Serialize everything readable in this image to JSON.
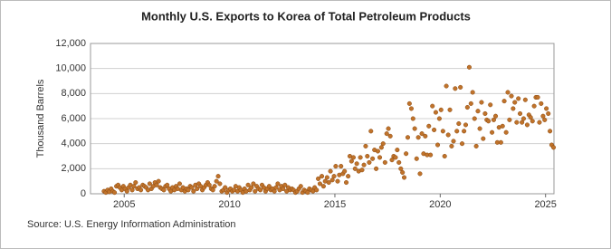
{
  "chart_data": {
    "type": "scatter",
    "title": "Monthly U.S. Exports to Korea of Total Petroleum Products",
    "y_label": "Thousand Barrels",
    "source": "Source: U.S. Energy Information Administration",
    "color": "#c0732b",
    "grid": true,
    "xlim": [
      2003.4,
      2025.4
    ],
    "xticks": [
      2005,
      2010,
      2015,
      2020,
      2025
    ],
    "ylim": [
      0,
      12000
    ],
    "yticks": [
      0,
      {
        "value": 2000,
        "label": "2,000"
      },
      {
        "value": 4000,
        "label": "4,000"
      },
      {
        "value": 6000,
        "label": "6,000"
      },
      {
        "value": 8000,
        "label": "8,000"
      },
      {
        "value": 10000,
        "label": "10,000"
      },
      {
        "value": 12000,
        "label": "12,000"
      }
    ],
    "x": [
      2004.04,
      2004.13,
      2004.21,
      2004.29,
      2004.38,
      2004.46,
      2004.54,
      2004.63,
      2004.71,
      2004.79,
      2004.88,
      2004.96,
      2005.04,
      2005.13,
      2005.21,
      2005.29,
      2005.38,
      2005.46,
      2005.54,
      2005.63,
      2005.71,
      2005.79,
      2005.88,
      2005.96,
      2006.04,
      2006.13,
      2006.21,
      2006.29,
      2006.38,
      2006.46,
      2006.54,
      2006.63,
      2006.71,
      2006.79,
      2006.88,
      2006.96,
      2007.04,
      2007.13,
      2007.21,
      2007.29,
      2007.38,
      2007.46,
      2007.54,
      2007.63,
      2007.71,
      2007.79,
      2007.88,
      2007.96,
      2008.04,
      2008.13,
      2008.21,
      2008.29,
      2008.38,
      2008.46,
      2008.54,
      2008.63,
      2008.71,
      2008.79,
      2008.88,
      2008.96,
      2009.04,
      2009.13,
      2009.21,
      2009.29,
      2009.38,
      2009.46,
      2009.54,
      2009.63,
      2009.71,
      2009.79,
      2009.88,
      2009.96,
      2010.04,
      2010.13,
      2010.21,
      2010.29,
      2010.38,
      2010.46,
      2010.54,
      2010.63,
      2010.71,
      2010.79,
      2010.88,
      2010.96,
      2011.04,
      2011.13,
      2011.21,
      2011.29,
      2011.38,
      2011.46,
      2011.54,
      2011.63,
      2011.71,
      2011.79,
      2011.88,
      2011.96,
      2012.04,
      2012.13,
      2012.21,
      2012.29,
      2012.38,
      2012.46,
      2012.54,
      2012.63,
      2012.71,
      2012.79,
      2012.88,
      2012.96,
      2013.04,
      2013.13,
      2013.21,
      2013.29,
      2013.38,
      2013.46,
      2013.54,
      2013.63,
      2013.71,
      2013.79,
      2013.88,
      2013.96,
      2014.04,
      2014.13,
      2014.21,
      2014.29,
      2014.38,
      2014.46,
      2014.54,
      2014.63,
      2014.71,
      2014.79,
      2014.88,
      2014.96,
      2015.04,
      2015.13,
      2015.21,
      2015.29,
      2015.38,
      2015.46,
      2015.54,
      2015.63,
      2015.71,
      2015.79,
      2015.88,
      2015.96,
      2016.04,
      2016.13,
      2016.21,
      2016.29,
      2016.38,
      2016.46,
      2016.54,
      2016.63,
      2016.71,
      2016.79,
      2016.88,
      2016.96,
      2017.04,
      2017.13,
      2017.21,
      2017.29,
      2017.38,
      2017.46,
      2017.54,
      2017.63,
      2017.71,
      2017.79,
      2017.88,
      2017.96,
      2018.04,
      2018.13,
      2018.21,
      2018.29,
      2018.38,
      2018.46,
      2018.54,
      2018.63,
      2018.71,
      2018.79,
      2018.88,
      2018.96,
      2019.04,
      2019.13,
      2019.21,
      2019.29,
      2019.38,
      2019.46,
      2019.54,
      2019.63,
      2019.71,
      2019.79,
      2019.88,
      2019.96,
      2020.04,
      2020.13,
      2020.21,
      2020.29,
      2020.38,
      2020.46,
      2020.54,
      2020.63,
      2020.71,
      2020.79,
      2020.88,
      2020.96,
      2021.04,
      2021.13,
      2021.21,
      2021.29,
      2021.38,
      2021.46,
      2021.54,
      2021.63,
      2021.71,
      2021.79,
      2021.88,
      2021.96,
      2022.04,
      2022.13,
      2022.21,
      2022.29,
      2022.38,
      2022.46,
      2022.54,
      2022.63,
      2022.71,
      2022.79,
      2022.88,
      2022.96,
      2023.04,
      2023.13,
      2023.21,
      2023.29,
      2023.38,
      2023.46,
      2023.54,
      2023.63,
      2023.71,
      2023.79,
      2023.88,
      2023.96,
      2024.04,
      2024.13,
      2024.21,
      2024.29,
      2024.38,
      2024.46,
      2024.54,
      2024.63,
      2024.71,
      2024.79,
      2024.88,
      2024.96,
      2025.04,
      2025.13,
      2025.21,
      2025.29,
      2025.38
    ],
    "values": [
      200,
      100,
      300,
      150,
      400,
      200,
      100,
      600,
      700,
      500,
      300,
      600,
      400,
      200,
      500,
      700,
      300,
      600,
      900,
      400,
      500,
      300,
      700,
      600,
      500,
      300,
      800,
      400,
      600,
      900,
      700,
      1000,
      500,
      400,
      300,
      600,
      700,
      400,
      200,
      500,
      300,
      600,
      400,
      800,
      300,
      500,
      200,
      400,
      300,
      600,
      500,
      200,
      700,
      400,
      800,
      600,
      300,
      500,
      700,
      900,
      700,
      400,
      300,
      600,
      1000,
      1400,
      800,
      200,
      300,
      500,
      100,
      300,
      400,
      200,
      300,
      600,
      200,
      500,
      300,
      100,
      400,
      200,
      700,
      300,
      500,
      800,
      200,
      600,
      400,
      300,
      700,
      500,
      200,
      400,
      600,
      300,
      400,
      200,
      500,
      800,
      300,
      600,
      400,
      700,
      200,
      500,
      300,
      400,
      300,
      100,
      200,
      400,
      600,
      100,
      300,
      200,
      100,
      400,
      300,
      200,
      500,
      300,
      1200,
      800,
      1400,
      600,
      1000,
      1300,
      900,
      1800,
      1100,
      1400,
      2200,
      1000,
      1500,
      2200,
      1600,
      1800,
      900,
      1400,
      3000,
      2600,
      2900,
      2000,
      2400,
      1800,
      2900,
      1900,
      2300,
      3800,
      3000,
      2500,
      5000,
      2800,
      3500,
      2000,
      3400,
      2900,
      3700,
      4000,
      2500,
      4800,
      5200,
      4600,
      2700,
      3000,
      2900,
      3500,
      2500,
      2000,
      1700,
      1300,
      3200,
      4500,
      7200,
      6800,
      6000,
      5200,
      2800,
      4500,
      1600,
      4800,
      3200,
      4600,
      3100,
      5400,
      3100,
      7000,
      5100,
      6500,
      3900,
      6000,
      6700,
      5000,
      3000,
      8600,
      4700,
      6700,
      3800,
      4200,
      8400,
      5000,
      5600,
      8500,
      4000,
      5000,
      5500,
      6900,
      10100,
      7200,
      8100,
      6000,
      3800,
      6600,
      5200,
      7300,
      4400,
      6400,
      5900,
      5800,
      7100,
      4900,
      5900,
      6200,
      4100,
      5300,
      4100,
      5400,
      7400,
      4900,
      8100,
      5900,
      7800,
      6800,
      7300,
      5700,
      7600,
      6400,
      5700,
      6000,
      7500,
      5500,
      6300,
      6100,
      5800,
      7000,
      7700,
      7700,
      5700,
      7200,
      6200,
      5900,
      6800,
      6400,
      5000,
      3900,
      3700
    ]
  }
}
